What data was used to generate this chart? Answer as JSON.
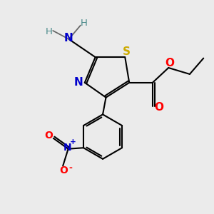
{
  "background_color": "#ebebeb",
  "atom_colors": {
    "C": "#000000",
    "H": "#4a8a8a",
    "N": "#0000cc",
    "S": "#ccaa00",
    "O": "#ff0000"
  },
  "bond_color": "#000000",
  "bond_lw": 1.5
}
